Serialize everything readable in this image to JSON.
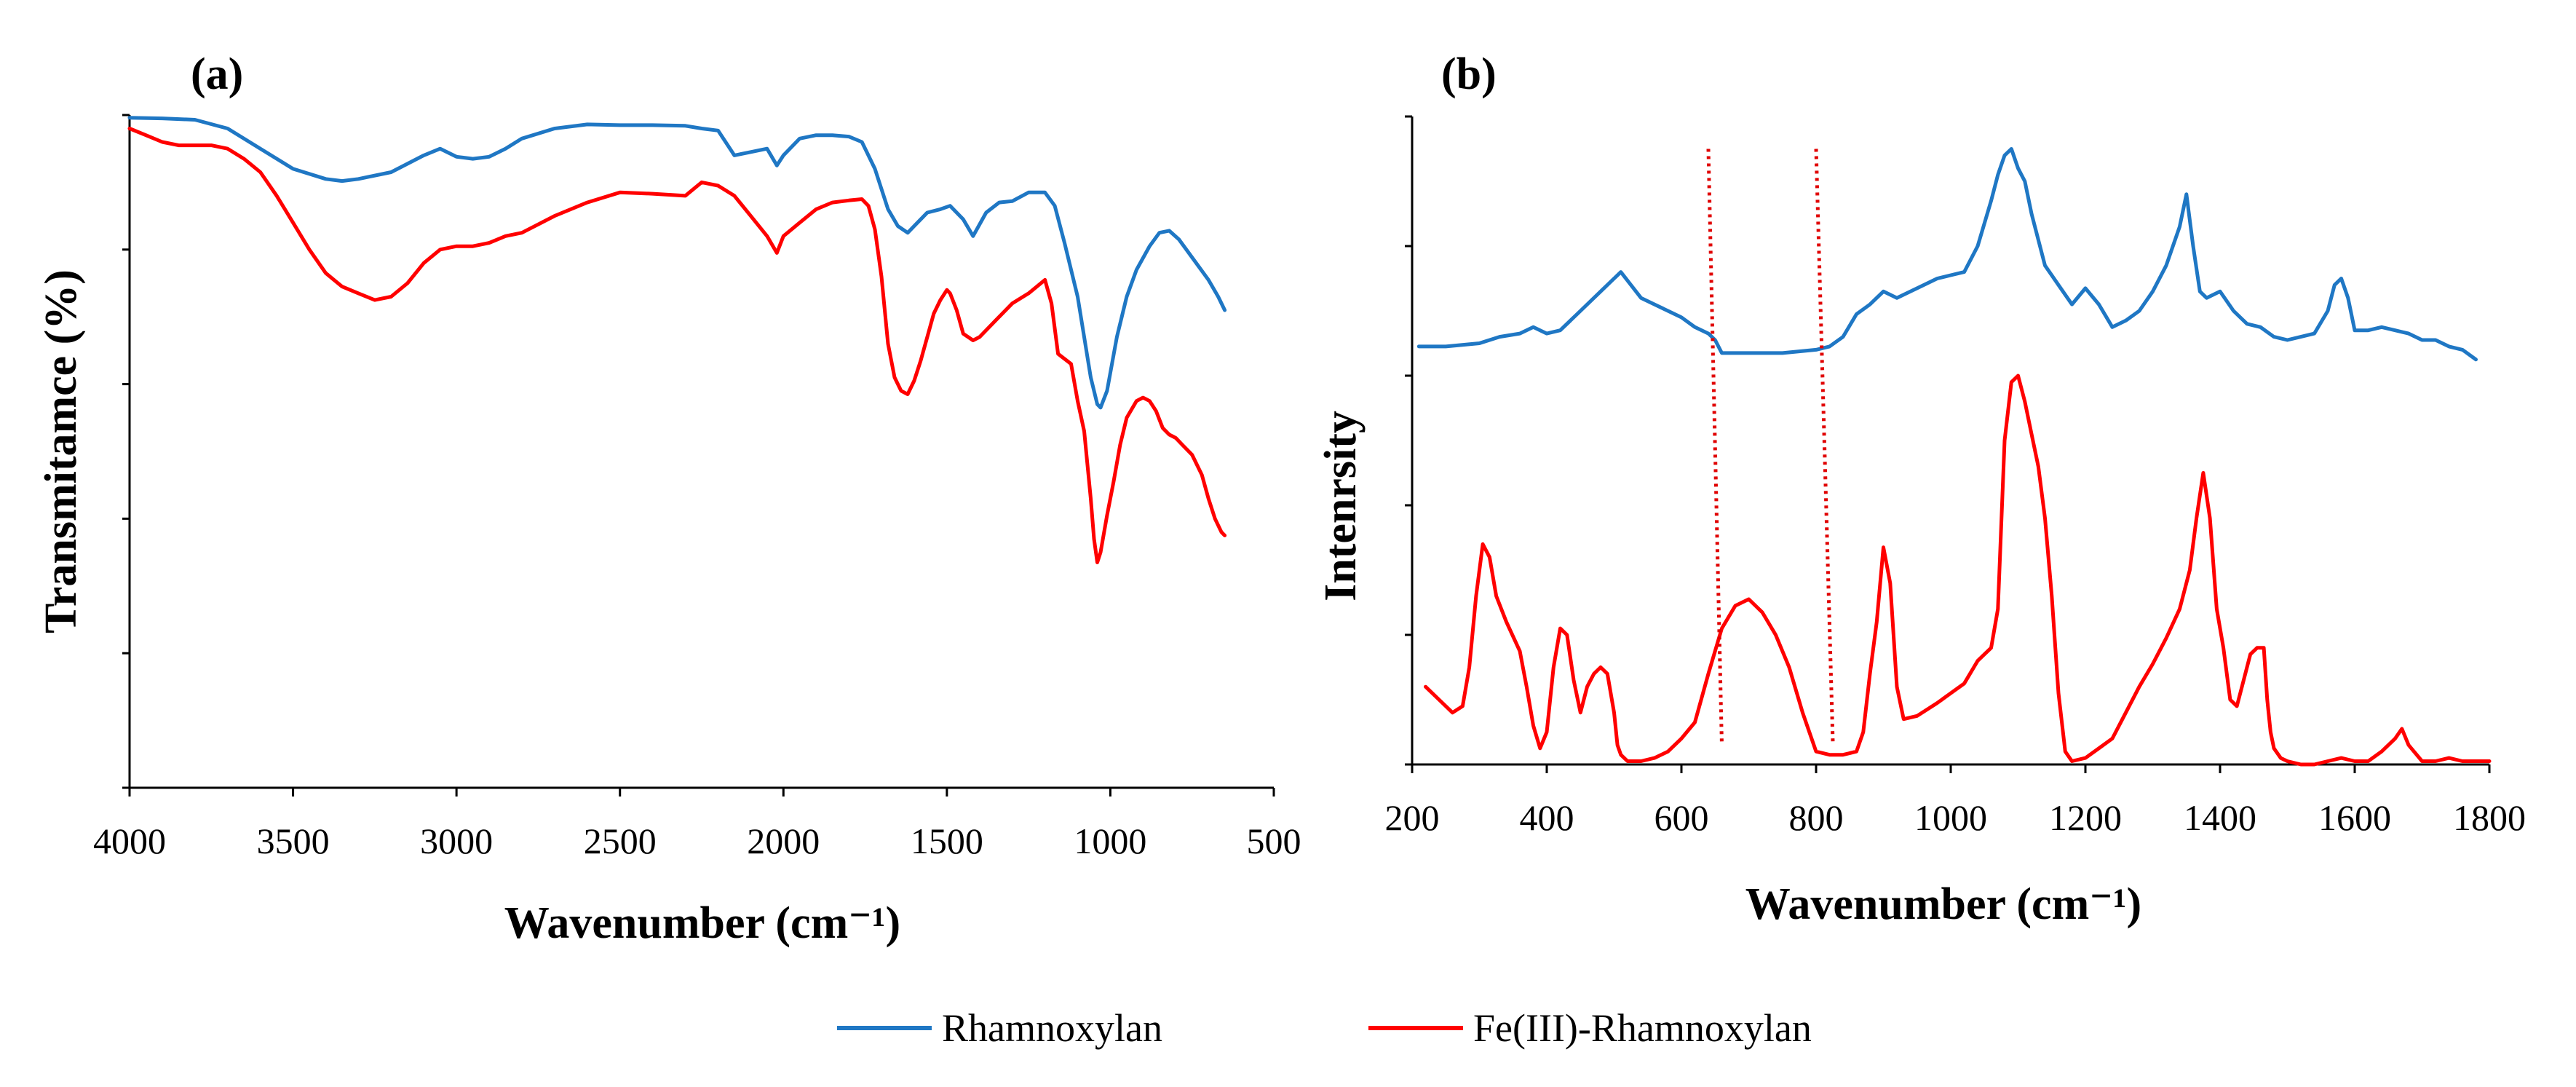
{
  "colors": {
    "rhamnoxylan": "#1f77c4",
    "fe_rhamnoxylan": "#ff0000",
    "axis": "#000000",
    "guide": "#e00000"
  },
  "legend": [
    "Rhamnoxylan",
    "Fe(III)-Rhamnoxylan"
  ],
  "chart_data": [
    {
      "panel": "(a)",
      "type": "line",
      "title": "",
      "xlabel": "Wavenumber (cm⁻¹)",
      "ylabel": "Transmitamce (%)",
      "xlim": [
        4000,
        500
      ],
      "x_reversed": true,
      "xticks": [
        4000,
        3500,
        3000,
        2500,
        2000,
        1500,
        1000,
        500
      ],
      "ylim": [
        0,
        100
      ],
      "yticks": [
        0,
        20,
        40,
        60,
        80,
        100
      ],
      "show_ytick_labels": false,
      "grid": false,
      "series": [
        {
          "name": "Rhamnoxylan",
          "color_key": "rhamnoxylan",
          "x": [
            4000,
            3900,
            3800,
            3700,
            3600,
            3500,
            3400,
            3350,
            3300,
            3200,
            3100,
            3050,
            3000,
            2950,
            2900,
            2850,
            2800,
            2700,
            2600,
            2500,
            2400,
            2300,
            2250,
            2200,
            2150,
            2100,
            2050,
            2020,
            2000,
            1950,
            1900,
            1850,
            1800,
            1760,
            1720,
            1680,
            1650,
            1620,
            1600,
            1560,
            1520,
            1490,
            1450,
            1420,
            1380,
            1340,
            1300,
            1250,
            1200,
            1170,
            1140,
            1100,
            1060,
            1040,
            1030,
            1010,
            980,
            950,
            920,
            880,
            850,
            820,
            790,
            760,
            730,
            700,
            670,
            650
          ],
          "y": [
            99.6,
            99.5,
            99.3,
            98,
            95,
            92,
            90.5,
            90.2,
            90.5,
            91.5,
            94,
            95,
            93.8,
            93.5,
            93.8,
            95,
            96.5,
            98,
            98.6,
            98.5,
            98.5,
            98.4,
            98,
            97.7,
            94,
            94.5,
            95,
            92.5,
            94,
            96.5,
            97,
            97,
            96.8,
            96,
            92,
            86,
            83.5,
            82.5,
            83.5,
            85.5,
            86,
            86.5,
            84.5,
            82,
            85.5,
            87,
            87.2,
            88.5,
            88.5,
            86.5,
            81,
            73,
            61,
            57,
            56.5,
            59,
            67,
            73,
            77,
            80.5,
            82.5,
            82.8,
            81.5,
            79.5,
            77.5,
            75.5,
            73,
            71
          ]
        },
        {
          "name": "Fe(III)-Rhamnoxylan",
          "color_key": "fe_rhamnoxylan",
          "x": [
            4000,
            3950,
            3900,
            3850,
            3800,
            3750,
            3700,
            3650,
            3600,
            3550,
            3500,
            3450,
            3400,
            3350,
            3300,
            3250,
            3200,
            3150,
            3100,
            3050,
            3000,
            2950,
            2900,
            2850,
            2800,
            2700,
            2600,
            2500,
            2400,
            2300,
            2250,
            2200,
            2150,
            2100,
            2050,
            2020,
            2000,
            1950,
            1900,
            1850,
            1800,
            1760,
            1740,
            1720,
            1700,
            1680,
            1660,
            1640,
            1620,
            1600,
            1580,
            1560,
            1540,
            1520,
            1500,
            1490,
            1470,
            1450,
            1420,
            1400,
            1350,
            1300,
            1250,
            1200,
            1180,
            1160,
            1120,
            1100,
            1080,
            1060,
            1050,
            1040,
            1030,
            1010,
            990,
            970,
            950,
            920,
            900,
            880,
            860,
            840,
            820,
            800,
            780,
            750,
            720,
            700,
            680,
            660,
            650
          ],
          "y": [
            98,
            97,
            96,
            95.5,
            95.5,
            95.5,
            95,
            93.5,
            91.5,
            88,
            84,
            80,
            76.5,
            74.5,
            73.5,
            72.5,
            73,
            75,
            78,
            80,
            80.5,
            80.5,
            81,
            82,
            82.5,
            85,
            87,
            88.5,
            88.3,
            88,
            90,
            89.5,
            88,
            85,
            82,
            79.5,
            82,
            84,
            86,
            87,
            87.3,
            87.5,
            86.5,
            83,
            76,
            66,
            61,
            59,
            58.5,
            60.5,
            63.5,
            67,
            70.5,
            72.5,
            74,
            73.5,
            71,
            67.5,
            66.5,
            67,
            69.5,
            72,
            73.5,
            75.5,
            72,
            64.5,
            63,
            57.5,
            53,
            43,
            37,
            33.5,
            35,
            40.5,
            45.5,
            51,
            55,
            57.5,
            58,
            57.5,
            56,
            53.5,
            52.5,
            52,
            51,
            49.5,
            46.5,
            43,
            40,
            38,
            37.5
          ]
        }
      ]
    },
    {
      "panel": "(b)",
      "type": "line",
      "title": "",
      "xlabel": "Wavenumber (cm⁻¹)",
      "ylabel": "Intenrsity",
      "xlim": [
        200,
        1800
      ],
      "x_reversed": false,
      "xticks": [
        200,
        400,
        600,
        800,
        1000,
        1200,
        1400,
        1600,
        1800
      ],
      "ylim": [
        0,
        100
      ],
      "yticks": [
        0,
        20,
        40,
        60,
        80,
        100
      ],
      "show_ytick_labels": false,
      "grid": false,
      "guides": [
        {
          "x0": 640,
          "x1": 660,
          "y_top": 95,
          "y_bottom": 3
        },
        {
          "x0": 800,
          "x1": 825,
          "y_top": 95,
          "y_bottom": 3
        }
      ],
      "series": [
        {
          "name": "Rhamnoxylan",
          "color_key": "rhamnoxylan",
          "x": [
            210,
            250,
            300,
            330,
            360,
            380,
            400,
            420,
            450,
            480,
            500,
            510,
            525,
            540,
            560,
            580,
            600,
            620,
            640,
            650,
            660,
            670,
            700,
            750,
            800,
            820,
            840,
            860,
            880,
            900,
            920,
            950,
            980,
            1000,
            1020,
            1040,
            1060,
            1070,
            1080,
            1090,
            1100,
            1110,
            1120,
            1140,
            1160,
            1180,
            1200,
            1220,
            1240,
            1260,
            1280,
            1300,
            1320,
            1340,
            1350,
            1360,
            1370,
            1380,
            1400,
            1420,
            1440,
            1460,
            1480,
            1500,
            1520,
            1540,
            1560,
            1570,
            1580,
            1590,
            1600,
            1620,
            1640,
            1660,
            1680,
            1700,
            1720,
            1740,
            1760,
            1780
          ],
          "y": [
            64.5,
            64.5,
            65,
            66,
            66.5,
            67.5,
            66.5,
            67,
            70,
            73,
            75,
            76,
            74,
            72,
            71,
            70,
            69,
            67.5,
            66.5,
            65.5,
            63.5,
            63.5,
            63.5,
            63.5,
            64,
            64.5,
            66,
            69.5,
            71,
            73,
            72,
            73.5,
            75,
            75.5,
            76,
            80,
            87,
            91,
            94,
            95,
            92,
            90,
            85,
            77,
            74,
            71,
            73.5,
            71,
            67.5,
            68.5,
            70,
            73,
            77,
            83,
            88,
            80,
            73,
            72,
            73,
            70,
            68,
            67.5,
            66,
            65.5,
            66,
            66.5,
            70,
            74,
            75,
            72,
            67,
            67,
            67.5,
            67,
            66.5,
            65.5,
            65.5,
            64.5,
            64,
            62.5
          ]
        },
        {
          "name": "Fe(III)-Rhamnoxylan",
          "color_key": "fe_rhamnoxylan",
          "x": [
            220,
            240,
            260,
            275,
            285,
            295,
            305,
            315,
            325,
            340,
            360,
            370,
            380,
            390,
            400,
            410,
            420,
            430,
            440,
            450,
            460,
            470,
            480,
            490,
            500,
            505,
            510,
            520,
            540,
            560,
            580,
            600,
            620,
            640,
            660,
            680,
            700,
            710,
            720,
            740,
            760,
            780,
            800,
            820,
            840,
            860,
            870,
            880,
            890,
            900,
            910,
            920,
            930,
            950,
            980,
            1000,
            1020,
            1040,
            1060,
            1070,
            1080,
            1090,
            1100,
            1110,
            1120,
            1130,
            1140,
            1150,
            1160,
            1170,
            1180,
            1200,
            1220,
            1240,
            1260,
            1280,
            1300,
            1320,
            1340,
            1355,
            1365,
            1375,
            1385,
            1395,
            1405,
            1415,
            1425,
            1435,
            1445,
            1455,
            1465,
            1470,
            1475,
            1480,
            1490,
            1500,
            1520,
            1540,
            1560,
            1580,
            1600,
            1620,
            1640,
            1660,
            1670,
            1680,
            1700,
            1720,
            1740,
            1760,
            1780,
            1800
          ],
          "y": [
            12,
            10,
            8,
            9,
            15,
            26,
            34,
            32,
            26,
            22,
            17.5,
            12,
            6,
            2.5,
            5,
            15,
            21,
            20,
            13,
            8,
            12,
            14,
            15,
            14,
            8,
            3,
            1.5,
            0.5,
            0.5,
            1,
            2,
            4,
            6.5,
            14,
            21,
            24.5,
            25.5,
            24.5,
            23.5,
            20,
            15,
            8,
            2,
            1.5,
            1.5,
            2,
            5,
            14,
            22,
            33.5,
            28,
            12,
            7,
            7.5,
            9.5,
            11,
            12.5,
            16,
            18,
            24,
            50,
            59,
            60,
            56,
            51,
            46,
            38,
            26,
            11,
            2,
            0.5,
            1,
            2.5,
            4,
            8,
            12,
            15.5,
            19.5,
            24,
            30,
            38,
            45,
            38,
            24,
            18,
            10,
            9,
            13,
            17,
            18,
            18,
            10,
            5,
            2.5,
            1,
            0.5,
            0,
            0,
            0.5,
            1,
            0.5,
            0.5,
            2,
            4,
            5.5,
            3,
            0.5,
            0.5,
            1,
            0.5,
            0.5,
            0.5
          ]
        }
      ]
    }
  ]
}
